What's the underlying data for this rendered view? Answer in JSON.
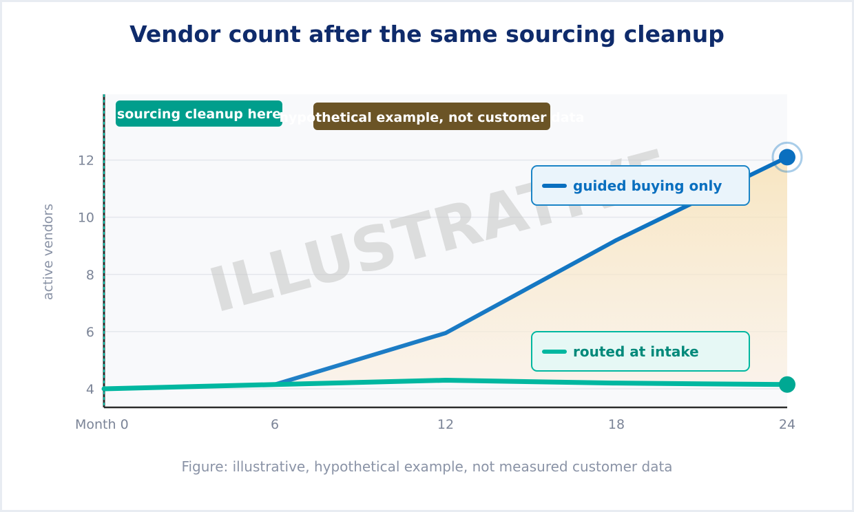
{
  "title": "Vendor count after the same sourcing cleanup",
  "caption": "Figure: illustrative, hypothetical example, not measured customer data",
  "watermark": "ILLUSTRATIVE",
  "annotations": {
    "cleanup": "sourcing cleanup here",
    "disclaimer": "hypothetical example, not customer data"
  },
  "colors": {
    "guided": "#0a6fbf",
    "routed": "#00b7a0",
    "title": "#0f2b6b",
    "fill": "#f5d9a8",
    "cleanup_badge": "#009e8c",
    "disclaimer_badge": "#6b5426"
  },
  "chart_data": {
    "type": "line",
    "title": "Vendor count after the same sourcing cleanup",
    "xlabel": "",
    "ylabel": "active vendors",
    "x": [
      0,
      6,
      12,
      18,
      24
    ],
    "x_tick_labels": [
      "Month 0",
      "6",
      "12",
      "18",
      "24"
    ],
    "y_ticks": [
      4,
      6,
      8,
      10,
      12
    ],
    "xlim": [
      0,
      24
    ],
    "ylim": [
      3.35,
      14.3
    ],
    "grid": true,
    "legend_placement": "inline labels on right",
    "series": [
      {
        "name": "guided buying only",
        "values": [
          4.0,
          4.15,
          5.95,
          9.2,
          12.1
        ],
        "color": "#0a6fbf"
      },
      {
        "name": "routed at intake",
        "values": [
          4.0,
          4.15,
          4.3,
          4.2,
          4.15
        ],
        "color": "#00b7a0"
      }
    ],
    "shaded_area_between_series": true,
    "vertical_marker": {
      "x": 0,
      "label": "sourcing cleanup here"
    }
  }
}
